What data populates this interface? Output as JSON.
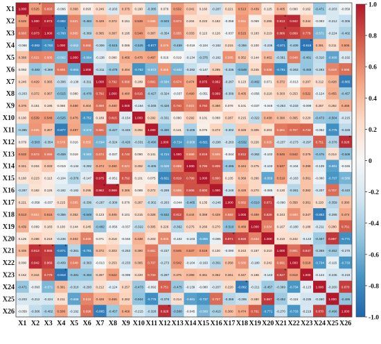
{
  "chart_data": {
    "type": "heatmap",
    "title": "",
    "xlabel": "",
    "ylabel": "",
    "row_labels": [
      "X1",
      "X2",
      "X3",
      "X4",
      "X5",
      "X6",
      "X7",
      "X8",
      "X9",
      "X10",
      "X11",
      "X12",
      "X13",
      "X14",
      "X15",
      "X16",
      "X17",
      "X18",
      "X19",
      "X20",
      "X21",
      "X22",
      "X23",
      "X24",
      "X25",
      "X26"
    ],
    "col_labels": [
      "X1",
      "X2",
      "X3",
      "X4",
      "X5",
      "X6",
      "X7",
      "X8",
      "X9",
      "X10",
      "X11",
      "X12",
      "X13",
      "X14",
      "X15",
      "X16",
      "X17",
      "X18",
      "X19",
      "X20",
      "X21",
      "X22",
      "X23",
      "X24",
      "X25",
      "X26"
    ],
    "colorbar": {
      "range": [
        -1.0,
        1.0
      ],
      "ticks": [
        "1.0",
        "0.8",
        "0.6",
        "0.4",
        "0.2",
        "0",
        "-0.2",
        "-0.4",
        "-0.6",
        "-0.8",
        "-1.0"
      ],
      "tick_values": [
        1.0,
        0.8,
        0.6,
        0.4,
        0.2,
        0,
        -0.2,
        -0.4,
        -0.6,
        -0.8,
        -1.0
      ],
      "colors_high_to_low": [
        "#b2182b",
        "#d6604d",
        "#f4a582",
        "#fddbc7",
        "#f7f7f7",
        "#d1e5f0",
        "#92c5de",
        "#4393c3",
        "#2166ac"
      ]
    },
    "values": [
      [
        1.0,
        0.525,
        0.693,
        -0.066,
        0.368,
        0.093,
        0.246,
        -0.203,
        0.375,
        0.19,
        -0.385,
        0.079,
        0.532,
        0.341,
        0.16,
        -0.287,
        0.221,
        0.513,
        0.439,
        0.125,
        0.405,
        0.09,
        0.162,
        -0.471,
        -0.203,
        -0.059
      ],
      [
        0.525,
        1.0,
        0.973,
        -0.882,
        0.621,
        -0.483,
        0.429,
        0.372,
        0.151,
        0.539,
        0.555,
        -0.503,
        0.673,
        0.204,
        0.223,
        0.182,
        -0.058,
        0.551,
        0.069,
        0.286,
        0.913,
        0.942,
        0.344,
        -0.093,
        -0.212,
        -0.306
      ],
      [
        0.693,
        0.973,
        1.0,
        -0.76,
        0.605,
        -0.369,
        0.365,
        0.367,
        0.195,
        0.548,
        0.367,
        -0.354,
        0.655,
        0.333,
        0.113,
        0.126,
        -0.037,
        0.515,
        0.183,
        0.219,
        0.886,
        0.869,
        0.779,
        -0.571,
        -0.224,
        -0.402
      ],
      [
        -0.066,
        -0.882,
        -0.76,
        1.0,
        -0.562,
        0.665,
        -0.306,
        -0.515,
        0.086,
        -0.525,
        -0.877,
        0.579,
        -0.459,
        -0.019,
        -0.104,
        -0.182,
        0.215,
        -0.356,
        0.1,
        -0.236,
        -0.871,
        -0.409,
        -0.918,
        0.391,
        0.211,
        0.506
      ],
      [
        0.368,
        0.621,
        0.605,
        -0.562,
        1.0,
        -0.664,
        -0.138,
        0.08,
        0.466,
        0.476,
        0.497,
        0.016,
        0.019,
        -0.134,
        -0.376,
        -0.182,
        0.585,
        0.352,
        0.144,
        0.402,
        -0.361,
        0.648,
        -0.481,
        -0.31,
        -0.668,
        -0.192
      ],
      [
        0.093,
        -0.483,
        -0.369,
        0.665,
        -0.664,
        1.0,
        -0.311,
        -0.478,
        0.404,
        -0.752,
        -0.572,
        0.555,
        -0.582,
        -0.292,
        -0.147,
        0.295,
        -0.336,
        -0.549,
        0.245,
        0.638,
        -0.791,
        -0.363,
        -0.493,
        -0.293,
        0.619,
        0.696
      ],
      [
        0.246,
        0.429,
        0.365,
        -0.306,
        -0.138,
        -0.311,
        1.0,
        0.792,
        0.699,
        0.189,
        0.691,
        -0.594,
        0.674,
        0.474,
        0.975,
        0.962,
        -0.287,
        0.123,
        -0.482,
        0.071,
        0.372,
        -0.013,
        0.287,
        0.212,
        0.428,
        -0.865
      ],
      [
        -0.203,
        0.372,
        0.367,
        -0.515,
        0.08,
        -0.478,
        0.792,
        1.0,
        0.48,
        0.815,
        -0.427,
        -0.324,
        -0.037,
        0.49,
        -0.051,
        0.969,
        -0.309,
        0.405,
        -0.056,
        0.218,
        0.303,
        0.253,
        0.522,
        -0.124,
        0.455,
        -0.457
      ],
      [
        0.375,
        0.151,
        0.195,
        0.086,
        0.466,
        0.404,
        0.699,
        0.48,
        1.0,
        -0.154,
        -0.345,
        -0.426,
        0.74,
        0.621,
        0.792,
        0.386,
        0.076,
        0.101,
        -0.037,
        -0.046,
        -0.253,
        -0.233,
        -0.099,
        0.257,
        0.282,
        0.466
      ],
      [
        0.19,
        0.539,
        0.548,
        -0.525,
        0.476,
        -0.752,
        0.189,
        0.815,
        -0.154,
        1.0,
        0.292,
        -0.331,
        0.09,
        0.292,
        0.101,
        0.088,
        0.287,
        0.215,
        -0.322,
        0.438,
        0.39,
        0.365,
        0.22,
        -0.473,
        -0.504,
        -0.215
      ],
      [
        -0.385,
        0.555,
        0.367,
        -0.877,
        0.497,
        -0.572,
        0.691,
        -0.427,
        -0.345,
        0.292,
        1.0,
        -0.49,
        0.141,
        -0.405,
        0.075,
        0.272,
        -0.302,
        0.328,
        0.305,
        0.203,
        0.661,
        0.707,
        0.733,
        -0.092,
        -0.775,
        -0.328
      ],
      [
        0.079,
        -0.503,
        -0.354,
        0.579,
        0.016,
        0.555,
        -0.594,
        -0.324,
        -0.426,
        -0.331,
        -0.49,
        1.0,
        -0.724,
        -0.608,
        -0.821,
        -0.298,
        -0.263,
        -0.532,
        0.226,
        0.605,
        -0.237,
        -0.273,
        -0.297,
        0.751,
        -0.378,
        0.928
      ],
      [
        0.532,
        0.673,
        0.655,
        -0.459,
        0.019,
        -0.582,
        0.674,
        -0.037,
        0.74,
        0.09,
        0.141,
        -0.724,
        1.0,
        0.669,
        0.819,
        0.605,
        -0.044,
        0.812,
        -0.362,
        -0.102,
        0.545,
        0.542,
        0.375,
        -0.475,
        0.214,
        -0.508
      ],
      [
        0.341,
        0.204,
        0.333,
        -0.019,
        -0.134,
        -0.292,
        0.474,
        0.49,
        0.621,
        0.292,
        -0.405,
        -0.608,
        0.669,
        1.0,
        0.799,
        0.805,
        -0.465,
        0.444,
        0.275,
        -0.103,
        0.537,
        -0.104,
        0.399,
        -0.139,
        -0.681,
        -0.045
      ],
      [
        0.16,
        0.223,
        0.113,
        -0.104,
        -0.376,
        -0.147,
        0.975,
        -0.051,
        0.792,
        0.101,
        0.075,
        -0.821,
        0.819,
        0.799,
        1.0,
        0.8,
        0.135,
        0.369,
        0.266,
        -0.659,
        0.519,
        -0.163,
        0.361,
        -0.08,
        -0.737,
        -0.589
      ],
      [
        -0.287,
        0.182,
        0.126,
        -0.182,
        -0.182,
        0.295,
        0.962,
        0.969,
        0.386,
        0.088,
        0.272,
        -0.298,
        0.605,
        0.805,
        0.8,
        1.0,
        -0.248,
        0.428,
        0.27,
        -0.085,
        0.13,
        -0.361,
        0.362,
        -0.207,
        0.707,
        -0.41
      ],
      [
        0.221,
        -0.058,
        -0.037,
        0.215,
        0.585,
        -0.336,
        -0.287,
        -0.309,
        0.076,
        0.287,
        -0.302,
        -0.263,
        -0.044,
        -0.465,
        0.135,
        -0.248,
        1.0,
        0.682,
        -0.51,
        0.871,
        -0.09,
        0.358,
        0.361,
        0.22,
        -0.359,
        0.38
      ],
      [
        0.513,
        0.551,
        0.515,
        -0.356,
        0.352,
        -0.549,
        0.123,
        0.405,
        0.101,
        0.215,
        0.328,
        -0.532,
        0.812,
        0.444,
        0.369,
        0.428,
        0.682,
        1.0,
        0.489,
        0.826,
        0.243,
        0.58,
        0.347,
        -0.862,
        -0.285,
        0.474
      ],
      [
        0.439,
        0.069,
        0.183,
        0.1,
        0.144,
        0.245,
        -0.482,
        -0.056,
        -0.037,
        -0.322,
        0.305,
        0.226,
        -0.362,
        0.275,
        0.266,
        0.27,
        -0.51,
        0.489,
        1.0,
        0.634,
        0.167,
        -0.18,
        0.188,
        -0.211,
        0.28,
        0.761
      ],
      [
        0.125,
        0.286,
        0.219,
        -0.236,
        0.402,
        0.638,
        0.071,
        0.218,
        -0.046,
        0.438,
        0.203,
        0.605,
        -0.102,
        -0.103,
        -0.659,
        -0.085,
        0.871,
        0.826,
        0.634,
        1.0,
        0.21,
        0.242,
        -0.143,
        -0.457,
        0.897,
        -0.771
      ],
      [
        0.405,
        0.913,
        0.886,
        -0.871,
        -0.361,
        -0.791,
        0.372,
        0.303,
        -0.253,
        0.39,
        0.661,
        -0.237,
        0.545,
        0.537,
        0.519,
        0.13,
        -0.09,
        0.243,
        0.167,
        0.21,
        1.0,
        0.691,
        0.847,
        -0.369,
        -0.452,
        -0.27
      ],
      [
        0.09,
        0.942,
        0.869,
        -0.409,
        0.648,
        -0.363,
        -0.013,
        0.253,
        -0.233,
        0.365,
        0.707,
        -0.273,
        0.542,
        -0.104,
        -0.163,
        -0.361,
        0.358,
        0.58,
        -0.18,
        0.242,
        0.691,
        1.0,
        0.518,
        -0.734,
        -0.115,
        -0.733
      ],
      [
        0.162,
        0.344,
        0.779,
        -0.918,
        -0.481,
        -0.493,
        0.287,
        0.522,
        -0.099,
        0.22,
        0.733,
        -0.297,
        0.375,
        0.399,
        0.361,
        0.362,
        0.361,
        0.347,
        0.188,
        -0.143,
        0.847,
        0.518,
        1.0,
        -0.123,
        -0.235,
        -0.219
      ],
      [
        -0.471,
        -0.093,
        -0.571,
        0.391,
        -0.31,
        -0.293,
        0.212,
        -0.124,
        0.257,
        -0.473,
        -0.092,
        0.751,
        -0.475,
        -0.139,
        -0.08,
        -0.207,
        0.22,
        -0.862,
        -0.211,
        -0.457,
        -0.369,
        -0.734,
        -0.123,
        1.0,
        -0.26,
        0.87
      ],
      [
        -0.203,
        -0.212,
        -0.224,
        0.211,
        -0.668,
        0.619,
        0.428,
        0.455,
        0.282,
        -0.504,
        -0.775,
        -0.378,
        0.214,
        -0.681,
        -0.737,
        0.707,
        -0.359,
        -0.285,
        0.28,
        0.897,
        -0.452,
        -0.115,
        -0.235,
        -0.26,
        1.0,
        -0.496
      ],
      [
        -0.059,
        -0.306,
        -0.402,
        0.506,
        -0.192,
        0.696,
        -0.865,
        -0.457,
        0.466,
        -0.215,
        -0.328,
        0.928,
        -0.508,
        -0.045,
        -0.589,
        -0.41,
        0.38,
        0.474,
        0.761,
        -0.771,
        -0.27,
        -0.733,
        -0.219,
        0.87,
        -0.496,
        1.0
      ]
    ],
    "significance_markers": [
      [
        1,
        2
      ],
      [
        2,
        1
      ],
      [
        2,
        3
      ],
      [
        3,
        2
      ],
      [
        3,
        4
      ],
      [
        4,
        3
      ],
      [
        2,
        21
      ],
      [
        21,
        2
      ],
      [
        3,
        21
      ],
      [
        21,
        3
      ],
      [
        7,
        15
      ],
      [
        15,
        7
      ],
      [
        8,
        16
      ],
      [
        16,
        8
      ],
      [
        7,
        16
      ],
      [
        16,
        7
      ],
      [
        21,
        23
      ],
      [
        23,
        21
      ],
      [
        4,
        23
      ],
      [
        23,
        4
      ],
      [
        12,
        26
      ],
      [
        26,
        12
      ],
      [
        18,
        24
      ],
      [
        24,
        18
      ],
      [
        20,
        17
      ],
      [
        17,
        20
      ],
      [
        21,
        4
      ],
      [
        4,
        21
      ]
    ],
    "significance_symbol": "*"
  }
}
